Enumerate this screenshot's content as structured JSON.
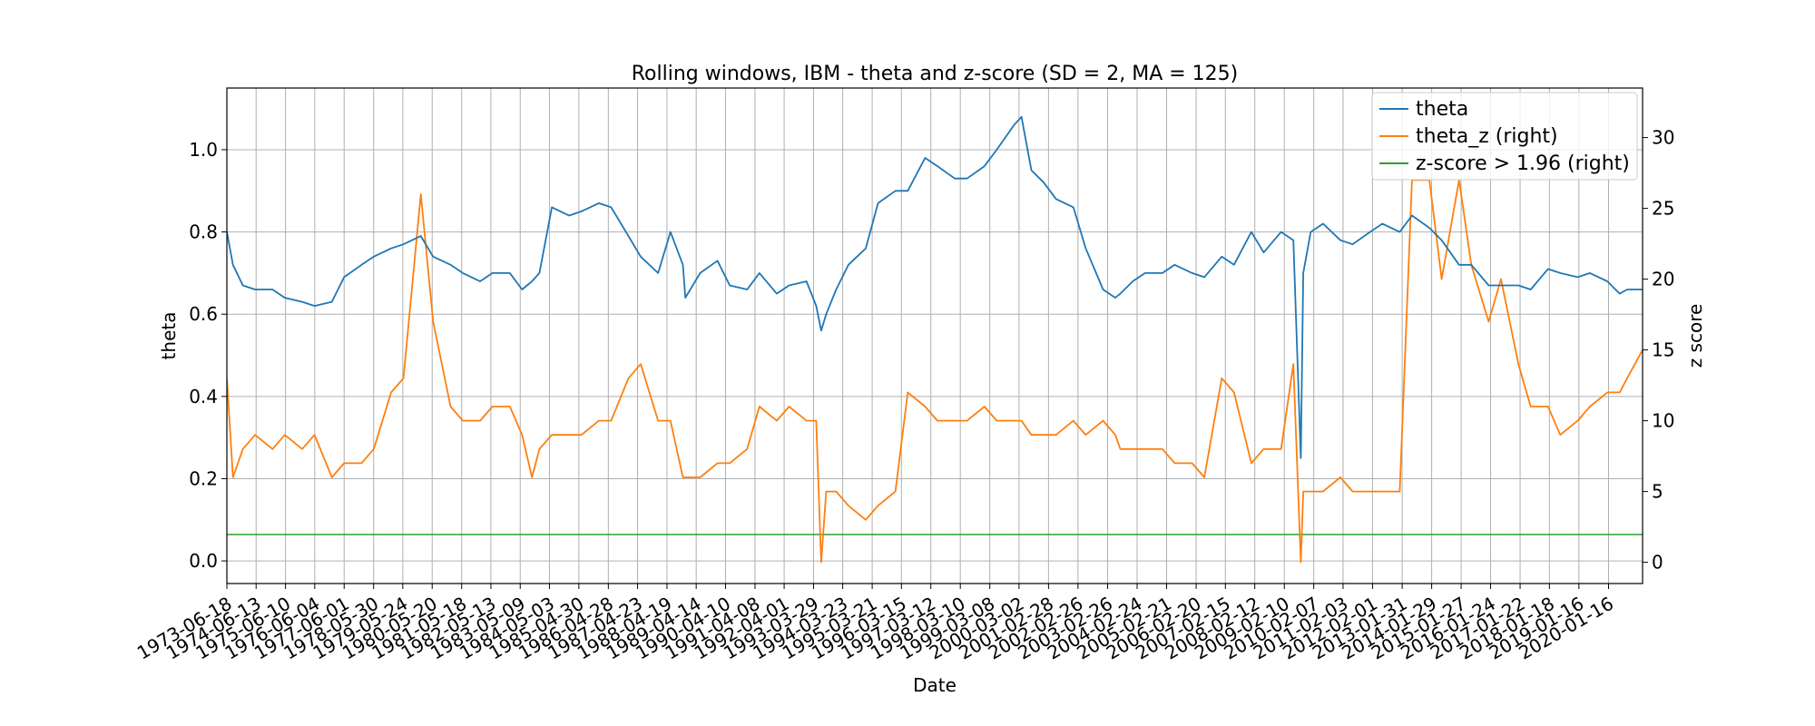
{
  "chart_data": {
    "type": "line",
    "title": "Rolling windows, IBM - theta and z-score (SD = 2, MA = 125)",
    "xlabel": "Date",
    "ylabel": "theta",
    "y2label": "z score",
    "ylim": [
      -0.055,
      1.15
    ],
    "y2lim": [
      -1.5,
      33.5
    ],
    "xlim": [
      "1973-06-18",
      "2021-03-10"
    ],
    "grid": true,
    "legend_position": "top-right",
    "yticks": [
      "0.0",
      "0.2",
      "0.4",
      "0.6",
      "0.8",
      "1.0"
    ],
    "y2ticks": [
      "0",
      "5",
      "10",
      "15",
      "20",
      "25",
      "30"
    ],
    "xticks": [
      "1973-06-18",
      "1974-06-13",
      "1975-06-10",
      "1976-06-04",
      "1977-06-01",
      "1978-05-30",
      "1979-05-24",
      "1980-05-20",
      "1981-05-18",
      "1982-05-13",
      "1983-05-09",
      "1984-05-03",
      "1985-04-30",
      "1986-04-28",
      "1987-04-23",
      "1988-04-19",
      "1989-04-14",
      "1990-04-10",
      "1991-04-08",
      "1992-04-01",
      "1993-03-29",
      "1994-03-23",
      "1995-03-21",
      "1996-03-15",
      "1997-03-12",
      "1998-03-10",
      "1999-03-08",
      "2000-03-02",
      "2001-02-28",
      "2002-02-26",
      "2003-02-26",
      "2004-02-24",
      "2005-02-21",
      "2006-02-20",
      "2007-02-15",
      "2008-02-12",
      "2009-02-10",
      "2010-02-07",
      "2011-02-03",
      "2012-02-01",
      "2013-01-31",
      "2014-01-29",
      "2015-01-27",
      "2016-01-24",
      "2017-01-22",
      "2018-01-18",
      "2019-01-16",
      "2020-01-16"
    ],
    "series": [
      {
        "name": "theta",
        "axis": "left",
        "color": "#1f77b4",
        "x": [
          "1973-06-18",
          "1973-09-01",
          "1974-01-01",
          "1974-06-01",
          "1975-01-01",
          "1975-06-01",
          "1976-01-01",
          "1976-06-01",
          "1977-01-01",
          "1977-06-01",
          "1978-01-01",
          "1978-06-01",
          "1979-01-01",
          "1979-06-01",
          "1980-01-01",
          "1980-06-01",
          "1981-01-01",
          "1981-06-01",
          "1982-01-01",
          "1982-06-01",
          "1983-01-01",
          "1983-06-01",
          "1983-10-01",
          "1984-01-01",
          "1984-06-01",
          "1985-01-01",
          "1985-06-01",
          "1986-01-01",
          "1986-06-01",
          "1987-01-01",
          "1987-06-01",
          "1988-01-01",
          "1988-06-01",
          "1988-11-01",
          "1988-12-01",
          "1989-06-01",
          "1990-01-01",
          "1990-06-01",
          "1991-01-01",
          "1991-06-01",
          "1992-01-01",
          "1992-06-01",
          "1993-01-01",
          "1993-05-01",
          "1993-07-01",
          "1993-09-01",
          "1994-01-01",
          "1994-06-01",
          "1995-01-01",
          "1995-06-01",
          "1996-01-01",
          "1996-06-01",
          "1997-01-01",
          "1997-06-01",
          "1998-01-01",
          "1998-06-01",
          "1999-01-01",
          "1999-06-01",
          "2000-01-01",
          "2000-04-01",
          "2000-08-01",
          "2001-01-01",
          "2001-06-01",
          "2002-01-01",
          "2002-06-01",
          "2003-01-01",
          "2003-06-01",
          "2003-08-01",
          "2004-01-01",
          "2004-06-01",
          "2005-01-01",
          "2005-06-01",
          "2006-01-01",
          "2006-06-01",
          "2007-01-01",
          "2007-06-01",
          "2008-01-01",
          "2008-06-01",
          "2009-01-01",
          "2009-06-01",
          "2009-09-01",
          "2009-10-01",
          "2010-01-01",
          "2010-06-01",
          "2011-01-01",
          "2011-06-01",
          "2012-01-01",
          "2012-06-01",
          "2013-01-01",
          "2013-06-01",
          "2014-01-01",
          "2014-06-01",
          "2015-01-01",
          "2015-06-01",
          "2016-01-01",
          "2016-06-01",
          "2017-01-01",
          "2017-06-01",
          "2018-01-01",
          "2018-06-01",
          "2019-01-01",
          "2019-06-01",
          "2020-01-01",
          "2020-06-01",
          "2020-09-01",
          "2021-03-10"
        ],
        "values": [
          0.8,
          0.72,
          0.67,
          0.66,
          0.66,
          0.64,
          0.63,
          0.62,
          0.63,
          0.69,
          0.72,
          0.74,
          0.76,
          0.77,
          0.79,
          0.74,
          0.72,
          0.7,
          0.68,
          0.7,
          0.7,
          0.66,
          0.68,
          0.7,
          0.86,
          0.84,
          0.85,
          0.87,
          0.86,
          0.79,
          0.74,
          0.7,
          0.8,
          0.72,
          0.64,
          0.7,
          0.73,
          0.67,
          0.66,
          0.7,
          0.65,
          0.67,
          0.68,
          0.62,
          0.56,
          0.6,
          0.66,
          0.72,
          0.76,
          0.87,
          0.9,
          0.9,
          0.98,
          0.96,
          0.93,
          0.93,
          0.96,
          1.0,
          1.06,
          1.08,
          0.95,
          0.92,
          0.88,
          0.86,
          0.76,
          0.66,
          0.64,
          0.65,
          0.68,
          0.7,
          0.7,
          0.72,
          0.7,
          0.69,
          0.74,
          0.72,
          0.8,
          0.75,
          0.8,
          0.78,
          0.25,
          0.7,
          0.8,
          0.82,
          0.78,
          0.77,
          0.8,
          0.82,
          0.8,
          0.84,
          0.81,
          0.78,
          0.72,
          0.72,
          0.67,
          0.67,
          0.67,
          0.66,
          0.71,
          0.7,
          0.69,
          0.7,
          0.68,
          0.65,
          0.66,
          0.66
        ]
      },
      {
        "name": "theta_z (right)",
        "axis": "right",
        "color": "#ff7f0e",
        "x": [
          "1973-06-18",
          "1973-09-01",
          "1974-01-01",
          "1974-06-01",
          "1975-01-01",
          "1975-06-01",
          "1976-01-01",
          "1976-06-01",
          "1977-01-01",
          "1977-06-01",
          "1978-01-01",
          "1978-06-01",
          "1979-01-01",
          "1979-06-01",
          "1980-01-01",
          "1980-06-01",
          "1981-01-01",
          "1981-06-01",
          "1982-01-01",
          "1982-06-01",
          "1983-01-01",
          "1983-06-01",
          "1983-10-01",
          "1984-01-01",
          "1984-06-01",
          "1985-01-01",
          "1985-06-01",
          "1986-01-01",
          "1986-06-01",
          "1987-01-01",
          "1987-06-01",
          "1988-01-01",
          "1988-06-01",
          "1988-11-01",
          "1988-12-01",
          "1989-06-01",
          "1990-01-01",
          "1990-06-01",
          "1991-01-01",
          "1991-06-01",
          "1992-01-01",
          "1992-06-01",
          "1993-01-01",
          "1993-05-01",
          "1993-07-01",
          "1993-09-01",
          "1994-01-01",
          "1994-06-01",
          "1995-01-01",
          "1995-06-01",
          "1996-01-01",
          "1996-06-01",
          "1997-01-01",
          "1997-06-01",
          "1998-01-01",
          "1998-06-01",
          "1999-01-01",
          "1999-06-01",
          "2000-01-01",
          "2000-04-01",
          "2000-08-01",
          "2001-01-01",
          "2001-06-01",
          "2002-01-01",
          "2002-06-01",
          "2003-01-01",
          "2003-06-01",
          "2003-08-01",
          "2004-01-01",
          "2004-06-01",
          "2005-01-01",
          "2005-06-01",
          "2006-01-01",
          "2006-06-01",
          "2007-01-01",
          "2007-06-01",
          "2008-01-01",
          "2008-06-01",
          "2009-01-01",
          "2009-06-01",
          "2009-09-01",
          "2009-10-01",
          "2010-01-01",
          "2010-06-01",
          "2011-01-01",
          "2011-06-01",
          "2012-01-01",
          "2012-06-01",
          "2013-01-01",
          "2013-06-01",
          "2014-01-01",
          "2014-06-01",
          "2015-01-01",
          "2015-06-01",
          "2016-01-01",
          "2016-06-01",
          "2017-01-01",
          "2017-06-01",
          "2018-01-01",
          "2018-06-01",
          "2019-01-01",
          "2019-06-01",
          "2020-01-01",
          "2020-06-01",
          "2020-09-01",
          "2021-03-10"
        ],
        "values": [
          13,
          6,
          8,
          9,
          8,
          9,
          8,
          9,
          6,
          7,
          7,
          8,
          12,
          13,
          26,
          17,
          11,
          10,
          10,
          11,
          11,
          9,
          6,
          8,
          9,
          9,
          9,
          10,
          10,
          13,
          14,
          10,
          10,
          6,
          6,
          6,
          7,
          7,
          8,
          11,
          10,
          11,
          10,
          10,
          0,
          5,
          5,
          4,
          3,
          4,
          5,
          12,
          11,
          10,
          10,
          10,
          11,
          10,
          10,
          10,
          9,
          9,
          9,
          10,
          9,
          10,
          9,
          8,
          8,
          8,
          8,
          7,
          7,
          6,
          13,
          12,
          7,
          8,
          8,
          14,
          0,
          5,
          5,
          5,
          6,
          5,
          5,
          5,
          5,
          27,
          27,
          20,
          27,
          21,
          17,
          20,
          14,
          11,
          11,
          9,
          10,
          11,
          12,
          12,
          13,
          15
        ]
      },
      {
        "name": "z-score > 1.96 (right)",
        "axis": "right",
        "color": "#2ca02c",
        "x": [
          "1973-06-18",
          "2021-03-10"
        ],
        "values": [
          1.96,
          1.96
        ]
      }
    ]
  }
}
